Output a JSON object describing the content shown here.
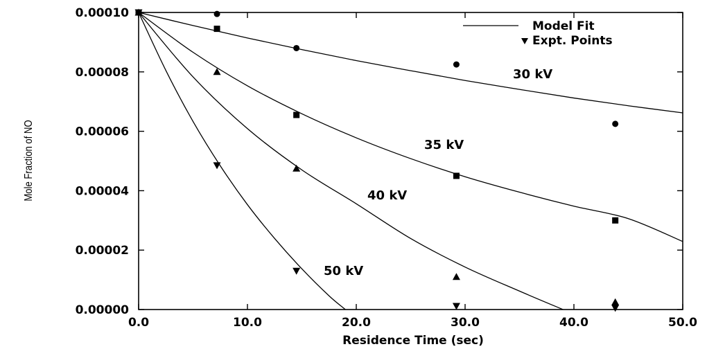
{
  "chart_data": {
    "type": "scatter",
    "title": "",
    "xlabel": "Residence Time (sec)",
    "ylabel": "Mole Fraction of NO",
    "xlim": [
      0,
      50
    ],
    "ylim": [
      0,
      0.0001
    ],
    "x_ticks": [
      "0.0",
      "10.0",
      "20.0",
      "30.0",
      "40.0",
      "50.0"
    ],
    "y_ticks": [
      "0.00000",
      "0.00002",
      "0.00004",
      "0.00006",
      "0.00008",
      "0.00010"
    ],
    "x_tick_values": [
      0,
      10,
      20,
      30,
      40,
      50
    ],
    "y_tick_values": [
      0,
      2e-05,
      4e-05,
      6e-05,
      8e-05,
      0.0001
    ],
    "legend": {
      "position": "top-right",
      "entries": [
        {
          "label": "Model Fit",
          "symbol": "line"
        },
        {
          "label": "Expt. Points",
          "symbol": "triangle-down"
        }
      ]
    },
    "series": [
      {
        "name": "30 kV",
        "marker": "circle",
        "points": [
          [
            0,
            0.0001
          ],
          [
            7.2,
            9.95e-05
          ],
          [
            14.5,
            8.8e-05
          ],
          [
            29.2,
            8.25e-05
          ],
          [
            43.8,
            6.25e-05
          ]
        ],
        "fit": [
          [
            0,
            0.0001
          ],
          [
            5,
            9.56e-05
          ],
          [
            10,
            9.14e-05
          ],
          [
            15,
            8.75e-05
          ],
          [
            20,
            8.38e-05
          ],
          [
            25,
            8.04e-05
          ],
          [
            30,
            7.71e-05
          ],
          [
            35,
            7.41e-05
          ],
          [
            40,
            7.12e-05
          ],
          [
            45,
            6.86e-05
          ],
          [
            50,
            6.62e-05
          ]
        ]
      },
      {
        "name": "35 kV",
        "marker": "square",
        "points": [
          [
            0,
            0.0001
          ],
          [
            7.2,
            9.45e-05
          ],
          [
            14.5,
            6.55e-05
          ],
          [
            29.2,
            4.5e-05
          ],
          [
            43.8,
            3e-05
          ]
        ],
        "fit": [
          [
            0,
            0.0001
          ],
          [
            5,
            8.66e-05
          ],
          [
            10,
            7.53e-05
          ],
          [
            15,
            6.59e-05
          ],
          [
            20,
            5.78e-05
          ],
          [
            25,
            5.08e-05
          ],
          [
            30,
            4.47e-05
          ],
          [
            35,
            3.95e-05
          ],
          [
            40,
            3.48e-05
          ],
          [
            45,
            3.06e-05
          ],
          [
            50,
            2.29e-05
          ]
        ]
      },
      {
        "name": "40 kV",
        "marker": "triangle-up",
        "points": [
          [
            0,
            0.0001
          ],
          [
            7.2,
            8e-05
          ],
          [
            14.5,
            4.75e-05
          ],
          [
            29.2,
            1.1e-05
          ],
          [
            43.8,
            2.5e-06
          ]
        ],
        "fit": [
          [
            0,
            0.0001
          ],
          [
            5,
            7.83e-05
          ],
          [
            10,
            6.09e-05
          ],
          [
            15,
            4.7e-05
          ],
          [
            20,
            3.56e-05
          ],
          [
            25,
            2.39e-05
          ],
          [
            30,
            1.43e-05
          ],
          [
            35,
            6.2e-06
          ],
          [
            39,
            0
          ]
        ]
      },
      {
        "name": "50 kV",
        "marker": "triangle-down",
        "points": [
          [
            0,
            0.0001
          ],
          [
            7.2,
            4.85e-05
          ],
          [
            14.5,
            1.3e-05
          ],
          [
            29.2,
            0
          ],
          [
            43.8,
            5e-07
          ]
        ],
        "fit": [
          [
            0,
            0.0001
          ],
          [
            2.5,
            8.05e-05
          ],
          [
            5,
            6.33e-05
          ],
          [
            7.5,
            4.84e-05
          ],
          [
            10,
            3.53e-05
          ],
          [
            12.5,
            2.39e-05
          ],
          [
            15,
            1.37e-05
          ],
          [
            17.5,
            4.6e-06
          ],
          [
            19,
            0
          ]
        ]
      }
    ],
    "grid": false
  }
}
